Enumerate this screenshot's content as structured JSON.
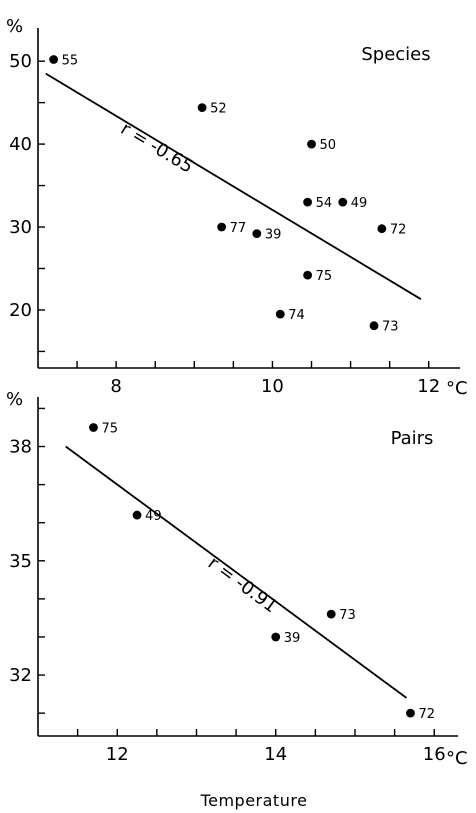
{
  "chart_data": [
    {
      "type": "scatter",
      "title": "Species",
      "y_unit": "%",
      "x_unit": "°C",
      "xlabel": "",
      "xlim": [
        7.0,
        12.4
      ],
      "ylim": [
        13,
        54
      ],
      "x_ticks": [
        "8",
        "10",
        "12"
      ],
      "y_ticks": [
        "20",
        "30",
        "40",
        "50"
      ],
      "points": [
        {
          "x": 7.2,
          "y": 50.2,
          "label": "55"
        },
        {
          "x": 9.1,
          "y": 44.4,
          "label": "52"
        },
        {
          "x": 10.5,
          "y": 40.0,
          "label": "50"
        },
        {
          "x": 10.45,
          "y": 33.0,
          "label": "54"
        },
        {
          "x": 10.9,
          "y": 33.0,
          "label": "49"
        },
        {
          "x": 11.4,
          "y": 29.8,
          "label": "72"
        },
        {
          "x": 9.35,
          "y": 30.0,
          "label": "77"
        },
        {
          "x": 9.8,
          "y": 29.2,
          "label": "39"
        },
        {
          "x": 10.45,
          "y": 24.2,
          "label": "75"
        },
        {
          "x": 10.1,
          "y": 19.5,
          "label": "74"
        },
        {
          "x": 11.3,
          "y": 18.1,
          "label": "73"
        }
      ],
      "fit_line": {
        "x1": 7.1,
        "y1": 48.5,
        "x2": 11.9,
        "y2": 21.3
      },
      "annotation": "r = -0.65"
    },
    {
      "type": "scatter",
      "title": "Pairs",
      "y_unit": "%",
      "x_unit": "°C",
      "xlabel": "Temperature",
      "xlim": [
        11.0,
        16.3
      ],
      "ylim": [
        30.4,
        39.3
      ],
      "x_ticks": [
        "12",
        "14",
        "16"
      ],
      "y_ticks": [
        "32",
        "35",
        "38"
      ],
      "points": [
        {
          "x": 11.7,
          "y": 38.5,
          "label": "75"
        },
        {
          "x": 12.25,
          "y": 36.2,
          "label": "49"
        },
        {
          "x": 14.7,
          "y": 33.6,
          "label": "73"
        },
        {
          "x": 14.0,
          "y": 33.0,
          "label": "39"
        },
        {
          "x": 15.7,
          "y": 31.0,
          "label": "72"
        }
      ],
      "fit_line": {
        "x1": 11.35,
        "y1": 38.0,
        "x2": 15.65,
        "y2": 31.4
      },
      "annotation": "r = -0.91"
    }
  ]
}
